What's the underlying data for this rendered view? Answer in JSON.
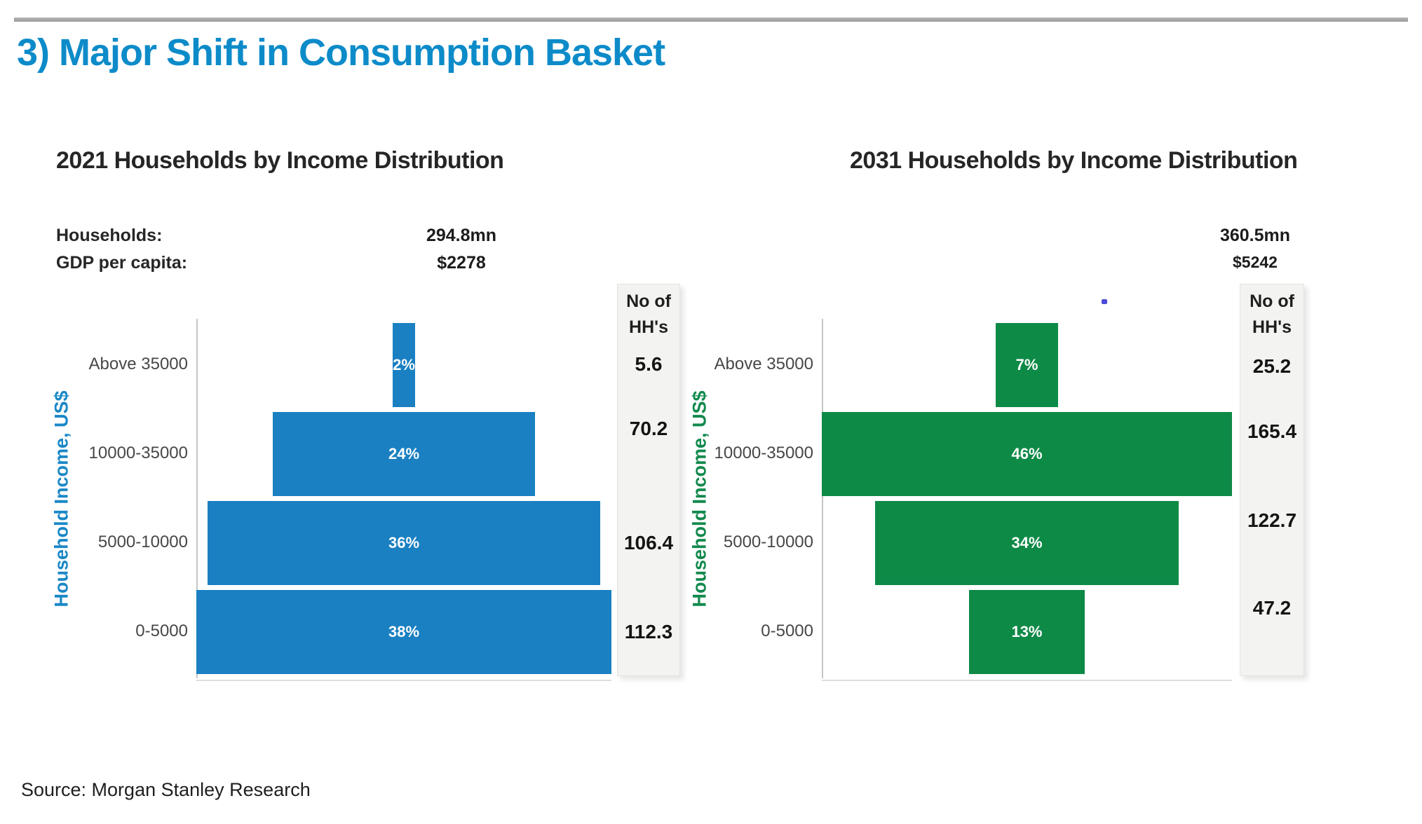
{
  "page": {
    "title": "3) Major Shift in Consumption Basket",
    "title_color": "#0d8bc9",
    "source": "Source: Morgan Stanley Research"
  },
  "chart_data": [
    {
      "type": "bar",
      "variant": "centered-funnel-horizontal",
      "title": "2021 Households by Income Distribution",
      "stats": [
        {
          "label": "Households:",
          "value": "294.8mn"
        },
        {
          "label": "GDP per capita:",
          "value": "$2278"
        }
      ],
      "ylabel": "Household Income, US$",
      "categories": [
        "Above 35000",
        "10000-35000",
        "5000-10000",
        "0-5000"
      ],
      "values_pct": [
        2,
        24,
        36,
        38
      ],
      "bar_labels": [
        "2%",
        "24%",
        "36%",
        "38%"
      ],
      "axis_max_pct": 38,
      "bar_color": "#1a80c2",
      "ylabel_color": "#1a87c6",
      "right_column": {
        "header_lines": "No of\nHH's",
        "values": [
          "5.6",
          "70.2",
          "106.4",
          "112.3"
        ]
      }
    },
    {
      "type": "bar",
      "variant": "centered-funnel-horizontal",
      "title": "2031 Households by Income Distribution",
      "stats": [
        {
          "label": "",
          "value": "360.5mn"
        },
        {
          "label": "",
          "value": "$5242"
        }
      ],
      "ylabel": "Household Income, US$",
      "categories": [
        "Above 35000",
        "10000-35000",
        "5000-10000",
        "0-5000"
      ],
      "values_pct": [
        7,
        46,
        34,
        13
      ],
      "bar_labels": [
        "7%",
        "46%",
        "34%",
        "13%"
      ],
      "axis_max_pct": 46,
      "bar_color": "#0e8a47",
      "ylabel_color": "#12894d",
      "right_column": {
        "header_lines": "No of\nHH's",
        "values": [
          "25.2",
          "165.4",
          "122.7",
          "47.2"
        ]
      }
    }
  ]
}
